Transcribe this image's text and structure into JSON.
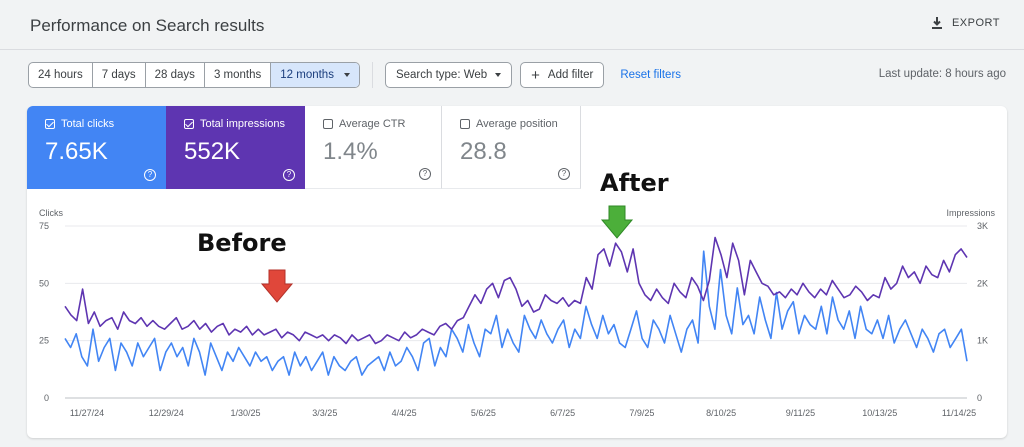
{
  "header": {
    "title": "Performance on Search results",
    "export_label": "EXPORT"
  },
  "filters": {
    "date_ranges": [
      "24 hours",
      "7 days",
      "28 days",
      "3 months",
      "12 months"
    ],
    "selected": "12 months",
    "search_type": "Search type: Web",
    "add_filter": "Add filter",
    "reset": "Reset filters",
    "last_update": "Last update: 8 hours ago"
  },
  "metrics": [
    {
      "label": "Total clicks",
      "value": "7.65K",
      "checked": true,
      "color": "#4285f4"
    },
    {
      "label": "Total impressions",
      "value": "552K",
      "checked": true,
      "color": "#5e35b1"
    },
    {
      "label": "Average CTR",
      "value": "1.4%",
      "checked": false
    },
    {
      "label": "Average position",
      "value": "28.8",
      "checked": false
    }
  ],
  "annotations": {
    "before": "Before",
    "after": "After"
  },
  "chart_data": {
    "type": "line",
    "left_axis": {
      "label": "Clicks",
      "ticks": [
        "75",
        "50",
        "25",
        "0"
      ],
      "range": [
        0,
        75
      ]
    },
    "right_axis": {
      "label": "Impressions",
      "ticks": [
        "3K",
        "2K",
        "1K",
        "0"
      ],
      "range": [
        0,
        3000
      ]
    },
    "x_ticks": [
      "11/27/24",
      "12/29/24",
      "1/30/25",
      "3/3/25",
      "4/4/25",
      "5/6/25",
      "6/7/25",
      "7/9/25",
      "8/10/25",
      "9/11/25",
      "10/13/25",
      "11/14/25"
    ],
    "grid": true,
    "series": [
      {
        "axis": "left",
        "color": "#4285f4",
        "values": [
          26,
          22,
          28,
          18,
          14,
          30,
          16,
          22,
          26,
          12,
          24,
          20,
          14,
          24,
          18,
          22,
          26,
          12,
          20,
          24,
          18,
          22,
          14,
          26,
          20,
          10,
          24,
          18,
          12,
          20,
          16,
          22,
          18,
          14,
          20,
          16,
          18,
          12,
          16,
          18,
          10,
          20,
          14,
          18,
          12,
          16,
          20,
          10,
          18,
          14,
          12,
          16,
          18,
          10,
          14,
          16,
          18,
          12,
          20,
          14,
          16,
          22,
          18,
          12,
          24,
          26,
          14,
          22,
          18,
          30,
          26,
          20,
          32,
          24,
          18,
          30,
          28,
          36,
          22,
          30,
          24,
          20,
          36,
          30,
          26,
          34,
          28,
          24,
          30,
          34,
          22,
          30,
          26,
          40,
          32,
          26,
          36,
          28,
          32,
          24,
          22,
          30,
          38,
          26,
          22,
          34,
          30,
          24,
          36,
          28,
          20,
          30,
          34,
          24,
          64,
          40,
          30,
          56,
          36,
          28,
          48,
          32,
          36,
          28,
          44,
          34,
          26,
          46,
          30,
          38,
          42,
          28,
          36,
          32,
          30,
          40,
          28,
          44,
          34,
          30,
          38,
          26,
          40,
          30,
          28,
          34,
          26,
          36,
          24,
          30,
          34,
          28,
          22,
          30,
          26,
          20,
          28,
          30,
          22,
          26,
          30,
          16
        ]
      },
      {
        "axis": "right",
        "color": "#5e35b1",
        "values": [
          1600,
          1450,
          1350,
          1900,
          1300,
          1500,
          1250,
          1350,
          1400,
          1200,
          1500,
          1350,
          1300,
          1400,
          1250,
          1350,
          1250,
          1200,
          1300,
          1400,
          1200,
          1250,
          1350,
          1200,
          1300,
          1150,
          1250,
          1300,
          1100,
          1200,
          1150,
          1250,
          1100,
          1200,
          1100,
          1150,
          1200,
          1050,
          1150,
          1100,
          1000,
          1150,
          1100,
          1050,
          1100,
          1000,
          1100,
          1050,
          950,
          1100,
          1000,
          1050,
          1100,
          950,
          1000,
          1100,
          1050,
          1000,
          1150,
          1050,
          1100,
          1200,
          1150,
          1100,
          1250,
          1300,
          1200,
          1350,
          1400,
          1600,
          1800,
          1650,
          1900,
          2000,
          1750,
          2050,
          2100,
          1900,
          1600,
          1700,
          1500,
          1550,
          1800,
          1700,
          1650,
          1750,
          1600,
          1700,
          1650,
          2100,
          1900,
          2500,
          2600,
          2300,
          2700,
          2550,
          2200,
          2600,
          2000,
          1800,
          1700,
          1900,
          1750,
          1650,
          2000,
          1850,
          1750,
          2100,
          1950,
          1700,
          2050,
          2800,
          2500,
          2100,
          2700,
          2400,
          1800,
          2400,
          2200,
          2000,
          1950,
          1800,
          1850,
          1750,
          1900,
          1800,
          2000,
          1850,
          1750,
          1900,
          1800,
          2050,
          1900,
          1750,
          1800,
          1950,
          1850,
          1700,
          1800,
          1750,
          2100,
          1900,
          2000,
          2300,
          2100,
          2200,
          2000,
          2300,
          2150,
          2100,
          2400,
          2200,
          2500,
          2600,
          2450
        ]
      }
    ]
  }
}
